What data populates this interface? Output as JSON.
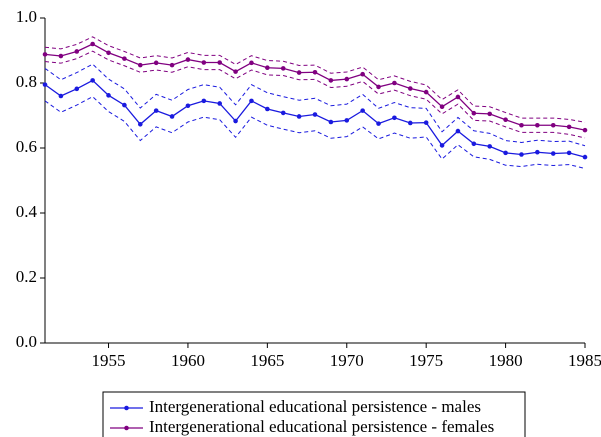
{
  "chart_data": {
    "type": "line",
    "x": [
      1951,
      1952,
      1953,
      1954,
      1955,
      1956,
      1957,
      1958,
      1959,
      1960,
      1961,
      1962,
      1963,
      1964,
      1965,
      1966,
      1967,
      1968,
      1969,
      1970,
      1971,
      1972,
      1973,
      1974,
      1975,
      1976,
      1977,
      1978,
      1979,
      1980,
      1981,
      1982,
      1983,
      1984,
      1985
    ],
    "series": [
      {
        "name": "Intergenerational educational persistence - males",
        "color": "#1a1adf",
        "values": [
          0.795,
          0.76,
          0.782,
          0.808,
          0.762,
          0.732,
          0.673,
          0.715,
          0.697,
          0.73,
          0.745,
          0.737,
          0.683,
          0.745,
          0.72,
          0.708,
          0.697,
          0.703,
          0.68,
          0.685,
          0.715,
          0.675,
          0.693,
          0.677,
          0.678,
          0.608,
          0.652,
          0.613,
          0.605,
          0.585,
          0.58,
          0.587,
          0.583,
          0.585,
          0.572
        ],
        "upper": [
          0.845,
          0.81,
          0.832,
          0.858,
          0.812,
          0.782,
          0.723,
          0.765,
          0.747,
          0.78,
          0.795,
          0.787,
          0.733,
          0.795,
          0.77,
          0.758,
          0.747,
          0.753,
          0.73,
          0.735,
          0.765,
          0.722,
          0.74,
          0.724,
          0.722,
          0.65,
          0.694,
          0.653,
          0.645,
          0.623,
          0.617,
          0.624,
          0.62,
          0.621,
          0.607
        ],
        "lower": [
          0.745,
          0.71,
          0.732,
          0.758,
          0.712,
          0.682,
          0.623,
          0.665,
          0.647,
          0.68,
          0.695,
          0.687,
          0.633,
          0.695,
          0.67,
          0.658,
          0.647,
          0.653,
          0.63,
          0.635,
          0.665,
          0.628,
          0.646,
          0.63,
          0.634,
          0.566,
          0.61,
          0.573,
          0.565,
          0.547,
          0.543,
          0.55,
          0.546,
          0.549,
          0.537
        ]
      },
      {
        "name": "Intergenerational educational persistence - females",
        "color": "#800080",
        "values": [
          0.888,
          0.883,
          0.897,
          0.92,
          0.893,
          0.875,
          0.855,
          0.862,
          0.855,
          0.872,
          0.863,
          0.863,
          0.835,
          0.862,
          0.847,
          0.845,
          0.832,
          0.833,
          0.808,
          0.812,
          0.827,
          0.788,
          0.8,
          0.783,
          0.772,
          0.727,
          0.757,
          0.707,
          0.705,
          0.687,
          0.67,
          0.67,
          0.67,
          0.665,
          0.655
        ],
        "upper": [
          0.91,
          0.905,
          0.919,
          0.942,
          0.915,
          0.897,
          0.877,
          0.884,
          0.877,
          0.894,
          0.885,
          0.885,
          0.857,
          0.884,
          0.869,
          0.867,
          0.854,
          0.855,
          0.83,
          0.834,
          0.849,
          0.81,
          0.822,
          0.805,
          0.794,
          0.749,
          0.779,
          0.729,
          0.727,
          0.709,
          0.692,
          0.692,
          0.692,
          0.688,
          0.679
        ],
        "lower": [
          0.866,
          0.861,
          0.875,
          0.898,
          0.871,
          0.853,
          0.833,
          0.84,
          0.833,
          0.85,
          0.841,
          0.841,
          0.813,
          0.84,
          0.825,
          0.823,
          0.81,
          0.811,
          0.786,
          0.79,
          0.805,
          0.766,
          0.778,
          0.761,
          0.75,
          0.705,
          0.735,
          0.685,
          0.683,
          0.665,
          0.648,
          0.648,
          0.648,
          0.642,
          0.631
        ]
      }
    ],
    "xlim": [
      1951,
      1985
    ],
    "xticks": [
      1955,
      1960,
      1965,
      1970,
      1975,
      1980,
      1985
    ],
    "ylim": [
      0,
      1
    ],
    "yticks": [
      {
        "value": 0,
        "label": "0.0"
      },
      0.2,
      0.4,
      0.6,
      0.8,
      {
        "value": 1,
        "label": "1.0"
      }
    ]
  }
}
